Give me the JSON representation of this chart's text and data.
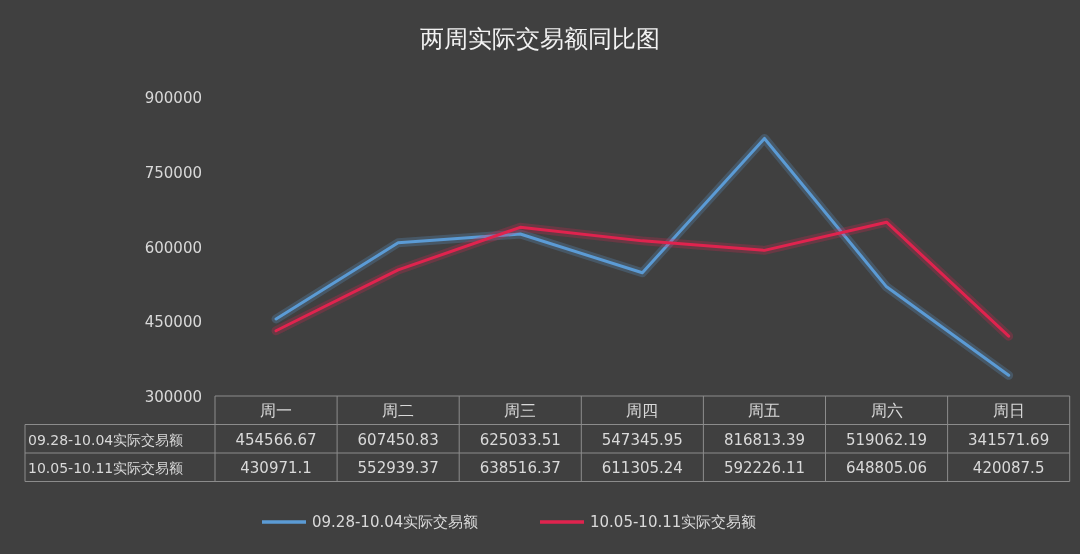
{
  "chart_data": {
    "type": "line",
    "title": "两周实际交易额同比图",
    "categories": [
      "周一",
      "周二",
      "周三",
      "周四",
      "周五",
      "周六",
      "周日"
    ],
    "series": [
      {
        "name": "09.28-10.04实际交易额",
        "color": "#5b9bd5",
        "values": [
          454566.67,
          607450.83,
          625033.51,
          547345.95,
          816813.39,
          519062.19,
          341571.69
        ]
      },
      {
        "name": "10.05-10.11实际交易额",
        "color": "#e0234e",
        "values": [
          430971.1,
          552939.37,
          638516.37,
          611305.24,
          592226.11,
          648805.06,
          420087.5
        ]
      }
    ],
    "ylim": [
      300000,
      900000
    ],
    "yticks": [
      300000,
      450000,
      600000,
      750000,
      900000
    ],
    "data_labels": true,
    "legend": "bottom"
  }
}
